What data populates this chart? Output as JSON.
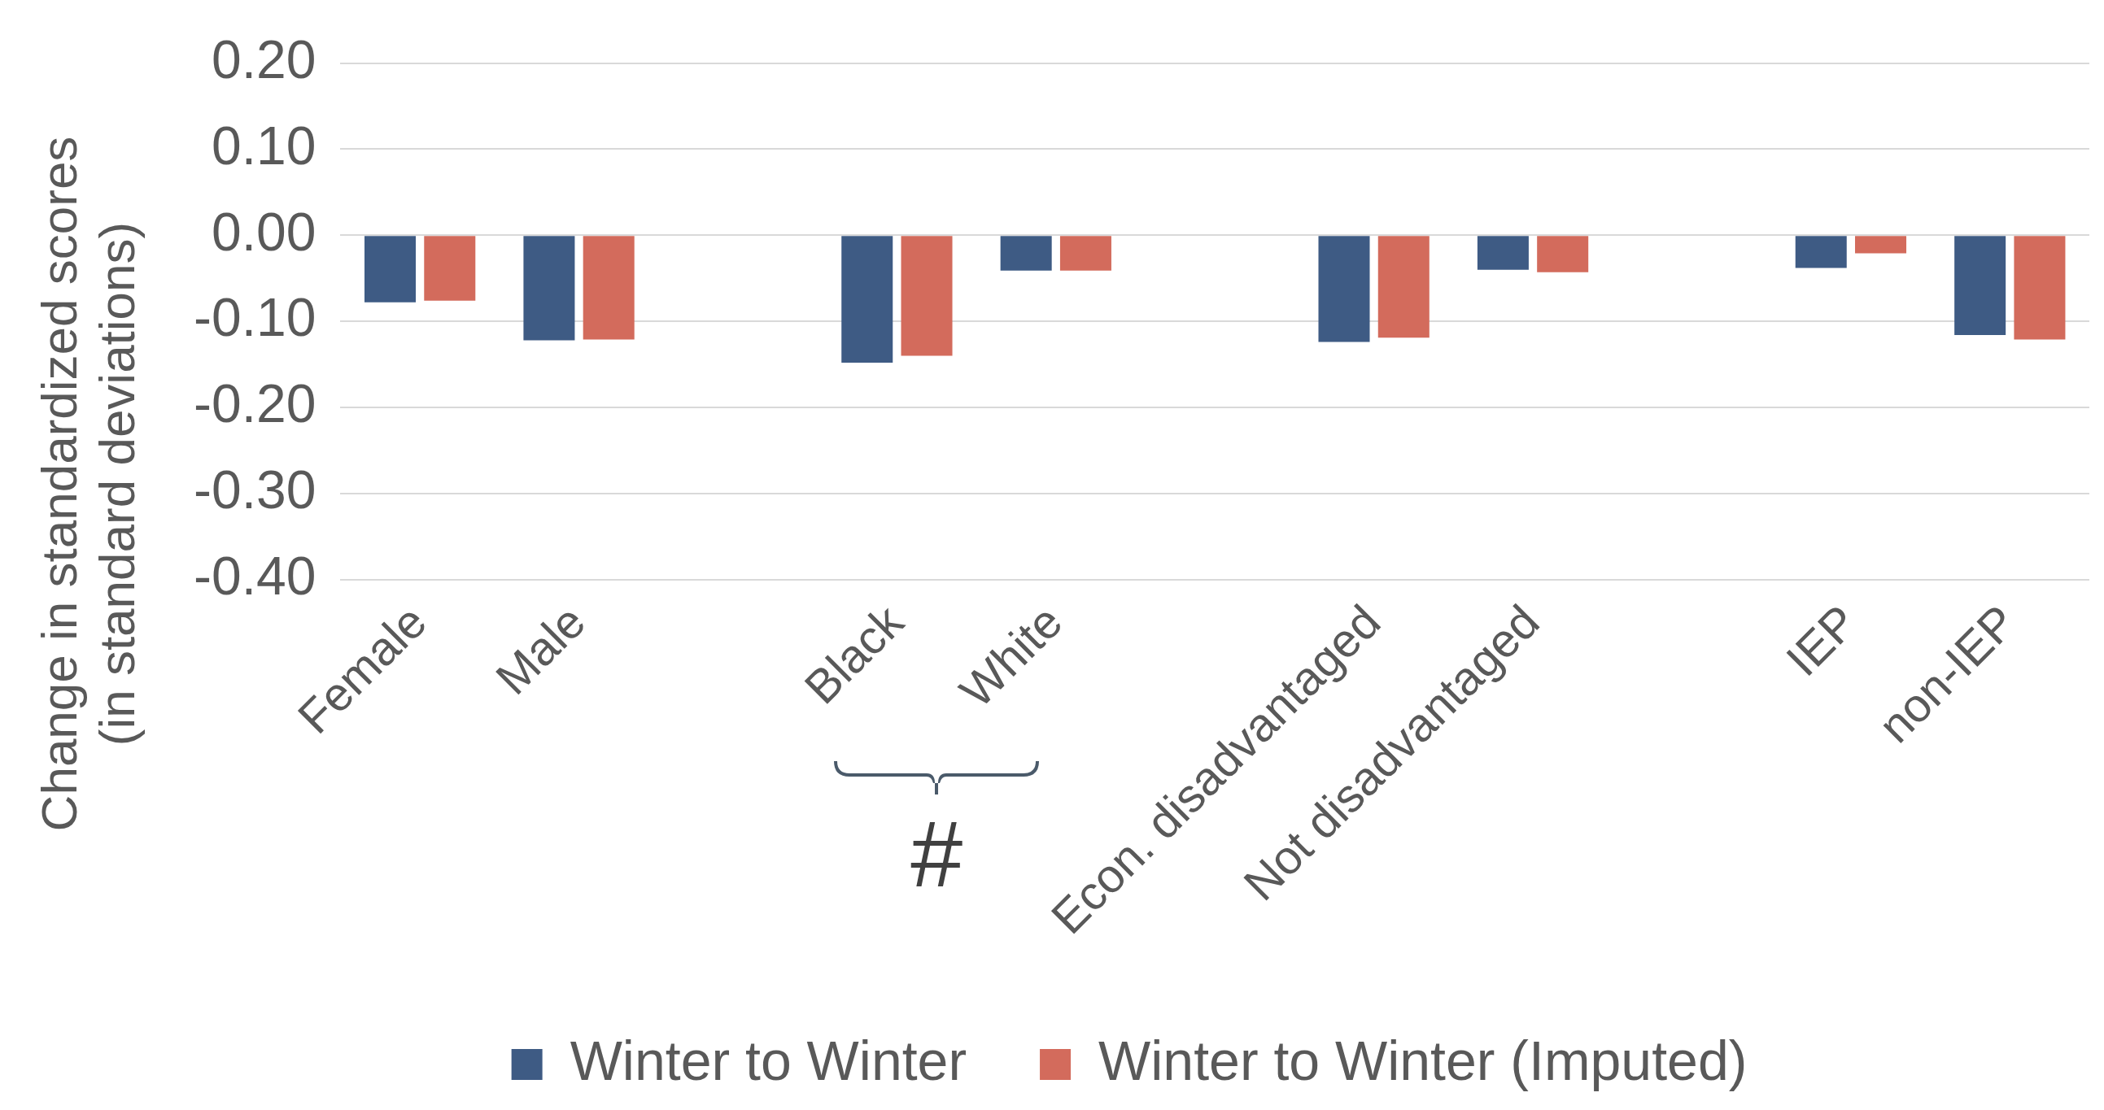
{
  "chart_data": {
    "type": "bar",
    "ylabel": "Change in standardized scores\n(in standard deviations)",
    "categories": [
      "Female",
      "Male",
      null,
      "Black",
      "White",
      null,
      "Econ. disadvantaged",
      "Not disadvantaged",
      null,
      "IEP",
      "non-IEP"
    ],
    "series": [
      {
        "name": "Winter to Winter",
        "color": "#3e5b84",
        "values": [
          -0.078,
          -0.122,
          null,
          -0.148,
          -0.041,
          null,
          -0.124,
          -0.04,
          null,
          -0.038,
          -0.116
        ]
      },
      {
        "name": "Winter to Winter (Imputed)",
        "color": "#d36b5c",
        "values": [
          -0.076,
          -0.121,
          null,
          -0.14,
          -0.041,
          null,
          -0.119,
          -0.043,
          null,
          -0.021,
          -0.121
        ]
      }
    ],
    "ylim": [
      -0.4,
      0.2
    ],
    "yticks": [
      {
        "value": 0.2,
        "label": "0.20"
      },
      {
        "value": 0.1,
        "label": "0.10"
      },
      {
        "value": 0,
        "label": "0.00"
      },
      {
        "value": -0.1,
        "label": "-0.10"
      },
      {
        "value": -0.2,
        "label": "-0.20"
      },
      {
        "value": -0.3,
        "label": "-0.30"
      },
      {
        "value": -0.4,
        "label": "-0.40"
      }
    ],
    "grid": "y",
    "legend": "bottom",
    "annotations": [
      "#"
    ]
  }
}
